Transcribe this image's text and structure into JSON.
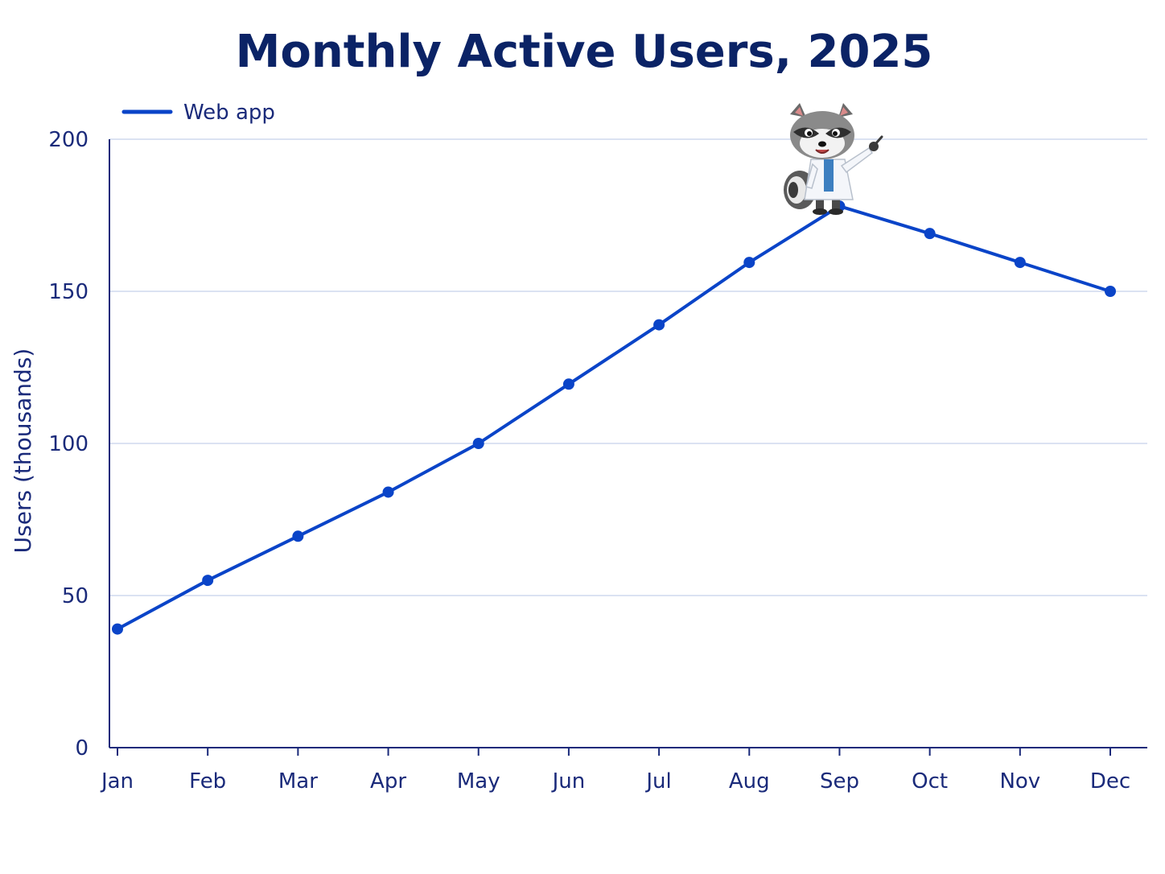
{
  "chart_data": {
    "type": "line",
    "title": "Monthly Active Users, 2025",
    "xlabel": "",
    "ylabel": "Users (thousands)",
    "categories": [
      "Jan",
      "Feb",
      "Mar",
      "Apr",
      "May",
      "Jun",
      "Jul",
      "Aug",
      "Sep",
      "Oct",
      "Nov",
      "Dec"
    ],
    "series": [
      {
        "name": "Web app",
        "values": [
          39,
          55,
          69.5,
          84,
          100,
          119.5,
          139,
          159.5,
          178,
          169,
          159.5,
          150
        ]
      }
    ],
    "ylim": [
      0,
      200
    ],
    "yticks": [
      0,
      50,
      100,
      150,
      200
    ],
    "grid": "horizontal",
    "legend_position": "top-left",
    "mascot": {
      "description_icon": "raccoon-mascot-icon",
      "points_at": "Sep"
    }
  },
  "colors": {
    "series_line": "#0a44c8",
    "title": "#0b2366",
    "axis_text": "#1a2a7a",
    "axis_line": "#1a2a7a",
    "grid": "#cfd8ee",
    "background": "#ffffff"
  }
}
